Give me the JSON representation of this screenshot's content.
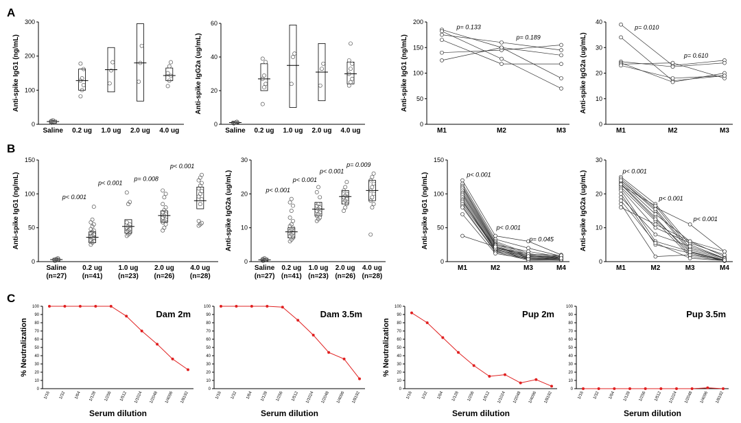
{
  "panels": {
    "A": "A",
    "B": "B",
    "C": "C"
  },
  "chart_data": [
    {
      "id": "A1",
      "type": "box_scatter",
      "ylabel": "Anti-spike IgG1 (ng/mL)",
      "ylim": [
        0,
        300
      ],
      "yticks": [
        0,
        100,
        200,
        300
      ],
      "categories": [
        "Saline",
        "0.2 ug",
        "1.0 ug",
        "2.0 ug",
        "4.0 ug"
      ],
      "groups": [
        {
          "points": [
            4,
            6,
            8,
            10,
            12
          ],
          "box": [
            3,
            12
          ],
          "median": 8
        },
        {
          "points": [
            82,
            100,
            115,
            128,
            135,
            162,
            178
          ],
          "box": [
            100,
            162
          ],
          "median": 128
        },
        {
          "points": [
            120,
            158,
            182
          ],
          "box": [
            95,
            225
          ],
          "median": 160
        },
        {
          "points": [
            125,
            180,
            230
          ],
          "box": [
            68,
            295
          ],
          "median": 180
        },
        {
          "points": [
            112,
            128,
            142,
            150,
            170,
            182
          ],
          "box": [
            128,
            165
          ],
          "median": 143
        }
      ]
    },
    {
      "id": "A2",
      "type": "box_scatter",
      "ylabel": "Anti-spike IgG2a (ug/mL)",
      "ylim": [
        0,
        60
      ],
      "yticks": [
        0,
        20,
        40,
        60
      ],
      "categories": [
        "Saline",
        "0.2 ug",
        "1.0 ug",
        "2.0 ug",
        "4.0 ug"
      ],
      "groups": [
        {
          "points": [
            0.5,
            1,
            1.5
          ],
          "box": [
            0.3,
            1.8
          ],
          "median": 1
        },
        {
          "points": [
            12,
            22,
            24,
            27,
            29,
            37,
            39
          ],
          "box": [
            20,
            36
          ],
          "median": 27
        },
        {
          "points": [
            24,
            40,
            42
          ],
          "box": [
            10,
            59
          ],
          "median": 35
        },
        {
          "points": [
            23,
            33,
            36
          ],
          "box": [
            14,
            48
          ],
          "median": 31
        },
        {
          "points": [
            23,
            25,
            27,
            30,
            33,
            36,
            38,
            48
          ],
          "box": [
            24,
            37
          ],
          "median": 30
        }
      ]
    },
    {
      "id": "A3",
      "type": "line_paired",
      "ylabel": "Anti-spike IgG1 (ng/mL)",
      "ylim": [
        0,
        200
      ],
      "yticks": [
        0,
        50,
        100,
        150,
        200
      ],
      "categories": [
        "M1",
        "M2",
        "M3"
      ],
      "series": [
        [
          185,
          150,
          90
        ],
        [
          182,
          128,
          70
        ],
        [
          175,
          160,
          145
        ],
        [
          165,
          118,
          118
        ],
        [
          140,
          145,
          155
        ],
        [
          125,
          150,
          135
        ]
      ],
      "pvalues": [
        {
          "text": "p= 0.133",
          "x": 1.45,
          "y": 186
        },
        {
          "text": "p= 0.189",
          "x": 2.45,
          "y": 166
        }
      ]
    },
    {
      "id": "A4",
      "type": "line_paired",
      "ylabel": "Anti-spike IgG2a (ug/mL)",
      "ylim": [
        0,
        40
      ],
      "yticks": [
        0,
        10,
        20,
        30,
        40
      ],
      "categories": [
        "M1",
        "M2",
        "M3"
      ],
      "series": [
        [
          39,
          23,
          25
        ],
        [
          34,
          17,
          19
        ],
        [
          24.5,
          22.5,
          24
        ],
        [
          24,
          16.5,
          20
        ],
        [
          23.5,
          24,
          18
        ],
        [
          23,
          18,
          19
        ]
      ],
      "pvalues": [
        {
          "text": "p= 0.010",
          "x": 1.5,
          "y": 37
        },
        {
          "text": "p= 0.610",
          "x": 2.45,
          "y": 26
        }
      ]
    },
    {
      "id": "B1",
      "type": "box_scatter",
      "ylabel": "Anti-spike IgG1 (ng/mL)",
      "ylim": [
        0,
        150
      ],
      "yticks": [
        0,
        50,
        100,
        150
      ],
      "categories": [
        "Saline\n(n=27)",
        "0.2 ug\n(n=41)",
        "1.0 ug\n(n=23)",
        "2.0 ug\n(n=26)",
        "4.0 ug\n(n=28)"
      ],
      "groups": [
        {
          "points": [
            1,
            2,
            3,
            3,
            4,
            5
          ],
          "box": [
            1,
            5
          ],
          "median": 3
        },
        {
          "points": [
            25,
            28,
            30,
            32,
            34,
            35,
            37,
            38,
            40,
            42,
            44,
            46,
            48,
            52,
            55,
            58,
            62,
            81
          ],
          "box": [
            28,
            44
          ],
          "median": 36
        },
        {
          "points": [
            38,
            40,
            42,
            44,
            46,
            48,
            50,
            52,
            55,
            58,
            85,
            88,
            102
          ],
          "box": [
            42,
            62
          ],
          "median": 52
        },
        {
          "points": [
            46,
            50,
            55,
            58,
            60,
            62,
            65,
            68,
            70,
            73,
            76,
            80,
            85,
            95,
            100,
            105
          ],
          "box": [
            58,
            75
          ],
          "median": 68
        },
        {
          "points": [
            53,
            55,
            57,
            60,
            85,
            92,
            96,
            100,
            104,
            108,
            112,
            116,
            120,
            124,
            128
          ],
          "box": [
            78,
            110
          ],
          "median": 90
        }
      ],
      "pvalues": [
        {
          "text": "p< 0.001",
          "x": 1,
          "y": 92
        },
        {
          "text": "p< 0.001",
          "x": 2,
          "y": 113
        },
        {
          "text": "p= 0.008",
          "x": 3,
          "y": 119
        },
        {
          "text": "p< 0.001",
          "x": 4,
          "y": 138
        }
      ]
    },
    {
      "id": "B2",
      "type": "box_scatter",
      "ylabel": "Anti-spike IgG2a (ug/mL)",
      "ylim": [
        0,
        30
      ],
      "yticks": [
        0,
        10,
        20,
        30
      ],
      "categories": [
        "Saline\n(n=27)",
        "0.2 ug\n(n=41)",
        "1.0 ug\n(n=23)",
        "2.0 ug\n(n=26)",
        "4.0 ug\n(n=28)"
      ],
      "groups": [
        {
          "points": [
            0.2,
            0.4,
            0.6,
            0.8,
            1.0
          ],
          "box": [
            0.2,
            1.0
          ],
          "median": 0.5
        },
        {
          "points": [
            6,
            6.5,
            7,
            7.5,
            8,
            8.5,
            9,
            9.5,
            10,
            10.5,
            11,
            12,
            13,
            15,
            16.5,
            17.5,
            18.5
          ],
          "box": [
            7,
            10
          ],
          "median": 8.8
        },
        {
          "points": [
            12,
            12.5,
            13,
            13.5,
            14,
            14.5,
            15,
            15.5,
            16,
            16.5,
            17,
            19,
            20.5,
            22
          ],
          "box": [
            13.5,
            17.5
          ],
          "median": 15.5
        },
        {
          "points": [
            15,
            16,
            17,
            17.5,
            18,
            18.5,
            19,
            19.5,
            20,
            21,
            22,
            23.5
          ],
          "box": [
            17,
            21
          ],
          "median": 19.2
        },
        {
          "points": [
            8,
            16,
            17,
            18,
            19,
            20,
            21,
            22,
            23,
            24,
            25,
            26
          ],
          "box": [
            18,
            24
          ],
          "median": 21
        }
      ],
      "pvalues": [
        {
          "text": "p< 0.001",
          "x": 1,
          "y": 20.5
        },
        {
          "text": "p< 0.001",
          "x": 2,
          "y": 23.5
        },
        {
          "text": "p< 0.001",
          "x": 3,
          "y": 26
        },
        {
          "text": "p= 0.009",
          "x": 4,
          "y": 28
        }
      ]
    },
    {
      "id": "B3",
      "type": "line_paired",
      "ylabel": "Anti-spike IgG1 (ng/mL)",
      "ylim": [
        0,
        150
      ],
      "yticks": [
        0,
        50,
        100,
        150
      ],
      "categories": [
        "M1",
        "M2",
        "M3",
        "M4"
      ],
      "series": [
        [
          120,
          38,
          30,
          10
        ],
        [
          115,
          33,
          20,
          8
        ],
        [
          112,
          30,
          12,
          6
        ],
        [
          110,
          28,
          10,
          5
        ],
        [
          108,
          26,
          8,
          4
        ],
        [
          105,
          25,
          15,
          7
        ],
        [
          102,
          24,
          6,
          3
        ],
        [
          100,
          22,
          5,
          5
        ],
        [
          98,
          20,
          9,
          6
        ],
        [
          95,
          18,
          4,
          3
        ],
        [
          92,
          17,
          7,
          8
        ],
        [
          90,
          16,
          3,
          2
        ],
        [
          88,
          21,
          11,
          9
        ],
        [
          85,
          19,
          6,
          4
        ],
        [
          82,
          15,
          5,
          3
        ],
        [
          80,
          14,
          2,
          2
        ],
        [
          70,
          12,
          4,
          3
        ],
        [
          38,
          22,
          8,
          5
        ]
      ],
      "pvalues": [
        {
          "text": "p< 0.001",
          "x": 1.5,
          "y": 125
        },
        {
          "text": "p< 0.001",
          "x": 2.4,
          "y": 47
        },
        {
          "text": "p= 0.045",
          "x": 3.4,
          "y": 30
        }
      ]
    },
    {
      "id": "B4",
      "type": "line_paired",
      "ylabel": "Anti-spike IgG2a (ug/mL)",
      "ylim": [
        0,
        30
      ],
      "yticks": [
        0,
        10,
        20,
        30
      ],
      "categories": [
        "M1",
        "M2",
        "M3",
        "M4"
      ],
      "series": [
        [
          25,
          17,
          5,
          1
        ],
        [
          24.5,
          16,
          11,
          3
        ],
        [
          24,
          15,
          3,
          0.5
        ],
        [
          23.5,
          14,
          6,
          1.5
        ],
        [
          23,
          13,
          2,
          0.5
        ],
        [
          22.5,
          16.5,
          4,
          1
        ],
        [
          22,
          12,
          1.5,
          0.3
        ],
        [
          21.5,
          10,
          5.5,
          2
        ],
        [
          21,
          6,
          3,
          0.5
        ],
        [
          20,
          5,
          2.5,
          0.2
        ],
        [
          19,
          8,
          4.5,
          1
        ],
        [
          18,
          5.5,
          1,
          0.3
        ],
        [
          17,
          1.5,
          2,
          0.5
        ],
        [
          16,
          11,
          6,
          3
        ],
        [
          24,
          15.5,
          3.5,
          0.8
        ],
        [
          22.8,
          12.5,
          2.8,
          0.4
        ]
      ],
      "pvalues": [
        {
          "text": "p< 0.001",
          "x": 1.4,
          "y": 26
        },
        {
          "text": "p< 0.001",
          "x": 2.45,
          "y": 18
        },
        {
          "text": "p< 0.001",
          "x": 3.45,
          "y": 12
        }
      ]
    },
    {
      "id": "C1",
      "type": "line",
      "title": "Dam 2m",
      "xlabel": "Serum dilution",
      "ylabel": "% Neutralization",
      "ylim": [
        0,
        100
      ],
      "yticks": [
        0,
        10,
        20,
        30,
        40,
        50,
        60,
        70,
        80,
        90,
        100
      ],
      "categories": [
        "1/16",
        "1/32",
        "1/64",
        "1/128",
        "1/256",
        "1/512",
        "1/1024",
        "1/2048",
        "1/4096",
        "1/8192"
      ],
      "values": [
        100,
        100,
        100,
        100,
        100,
        88,
        70,
        54,
        36,
        23
      ]
    },
    {
      "id": "C2",
      "type": "line",
      "title": "Dam 3.5m",
      "xlabel": "Serum dilution",
      "ylim": [
        0,
        100
      ],
      "yticks": [
        0,
        10,
        20,
        30,
        40,
        50,
        60,
        70,
        80,
        90,
        100
      ],
      "categories": [
        "1/16",
        "1/32",
        "1/64",
        "1/128",
        "1/256",
        "1/512",
        "1/1024",
        "1/2048",
        "1/4096",
        "1/8192"
      ],
      "values": [
        100,
        100,
        100,
        100,
        99,
        83,
        65,
        44,
        36,
        12
      ]
    },
    {
      "id": "C3",
      "type": "line",
      "title": "Pup 2m",
      "xlabel": "Serum dilution",
      "ylabel": "% Neutralization",
      "ylim": [
        0,
        100
      ],
      "yticks": [
        0,
        10,
        20,
        30,
        40,
        50,
        60,
        70,
        80,
        90,
        100
      ],
      "categories": [
        "1/16",
        "1/32",
        "1/64",
        "1/128",
        "1/256",
        "1/512",
        "1/1024",
        "1/2048",
        "1/4096",
        "1/8192"
      ],
      "values": [
        92,
        80,
        62,
        44,
        28,
        15,
        17,
        7,
        11,
        3
      ]
    },
    {
      "id": "C4",
      "type": "line",
      "title": "Pup 3.5m",
      "xlabel": "Serum dilution",
      "ylim": [
        0,
        100
      ],
      "yticks": [
        0,
        10,
        20,
        30,
        40,
        50,
        60,
        70,
        80,
        90,
        100
      ],
      "categories": [
        "1/16",
        "1/32",
        "1/64",
        "1/128",
        "1/256",
        "1/512",
        "1/1024",
        "1/2048",
        "1/4096",
        "1/8192"
      ],
      "values": [
        0,
        0,
        0,
        0,
        0,
        0,
        0,
        0,
        1,
        0
      ]
    }
  ]
}
